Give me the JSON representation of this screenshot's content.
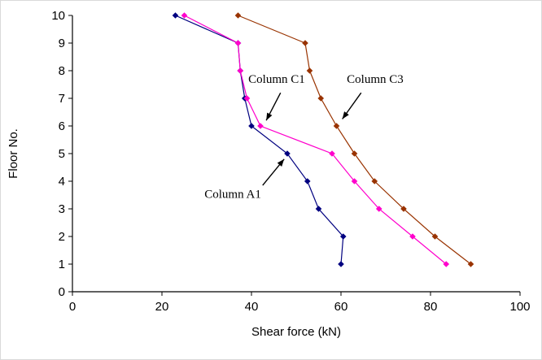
{
  "figure": {
    "background_color": "#ffffff"
  },
  "chart_data": {
    "type": "line",
    "title": "",
    "xlabel": "Shear force (kN)",
    "ylabel": "Floor No.",
    "xlim": [
      0,
      100
    ],
    "ylim": [
      0,
      10
    ],
    "x_ticks": [
      0,
      20,
      40,
      60,
      80,
      100
    ],
    "y_ticks": [
      0,
      1,
      2,
      3,
      4,
      5,
      6,
      7,
      8,
      9,
      10
    ],
    "grid": false,
    "legend_position": "none",
    "marker": "diamond",
    "floors": [
      10,
      9,
      8,
      7,
      6,
      5,
      4,
      3,
      2,
      1
    ],
    "series": [
      {
        "name": "Column A1",
        "color": "#000080",
        "values": [
          23,
          37,
          37.5,
          38.5,
          40,
          48,
          52.5,
          55,
          60.5,
          60
        ]
      },
      {
        "name": "Column C1",
        "color": "#FF00CC",
        "values": [
          25,
          37,
          37.5,
          39,
          42,
          58,
          63,
          68.5,
          76,
          83.5
        ]
      },
      {
        "name": "Column C3",
        "color": "#993300",
        "values": [
          37,
          52,
          53,
          55.5,
          59,
          63,
          67.5,
          74,
          81,
          89
        ]
      }
    ],
    "annotations": [
      {
        "label": "Column C1",
        "text_x": 39.3,
        "text_y": 7.7,
        "arrow_from_x": 46.5,
        "arrow_from_y": 7.2,
        "arrow_to_x": 43.3,
        "arrow_to_y": 6.2
      },
      {
        "label": "Column C3",
        "text_x": 61.3,
        "text_y": 7.7,
        "arrow_from_x": 64.5,
        "arrow_from_y": 7.2,
        "arrow_to_x": 60.3,
        "arrow_to_y": 6.25
      },
      {
        "label": "Column A1",
        "text_x": 29.5,
        "text_y": 3.55,
        "arrow_from_x": 42.5,
        "arrow_from_y": 3.85,
        "arrow_to_x": 47.3,
        "arrow_to_y": 4.8
      }
    ]
  }
}
